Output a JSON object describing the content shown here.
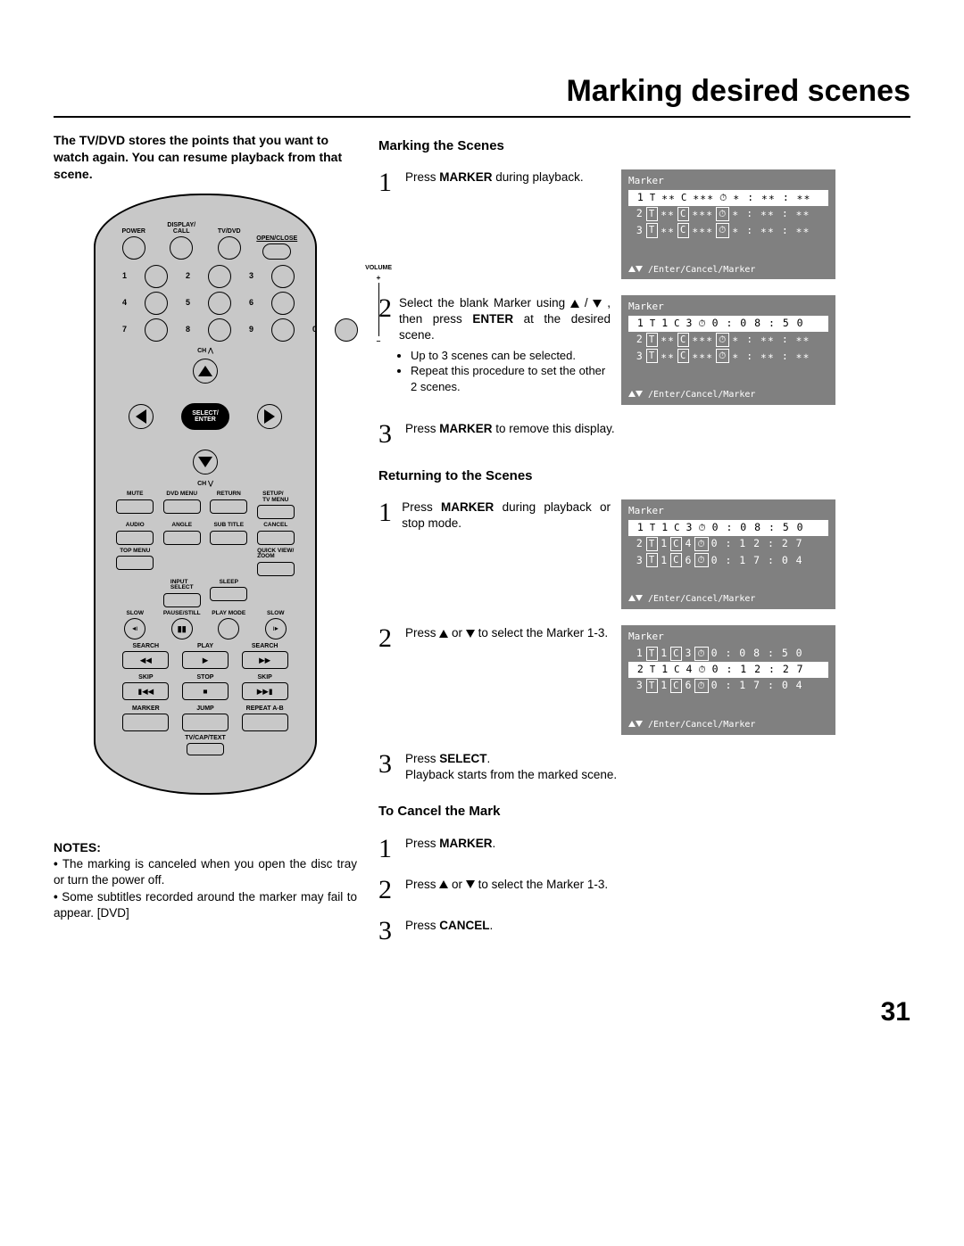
{
  "page": {
    "title": "Marking desired scenes",
    "number": "31"
  },
  "intro": "The TV/DVD stores the points that you want to watch again. You can resume playback from that scene.",
  "remote": {
    "row1": [
      "POWER",
      "DISPLAY/\nCALL",
      "TV/DVD",
      "OPEN/CLOSE"
    ],
    "vol": "VOLUME",
    "ch_up": "CH ⋀",
    "ch_dn": "CH ⋁",
    "center": "SELECT/\nENTER",
    "grid_a": [
      "MUTE",
      "DVD MENU",
      "RETURN",
      "SETUP/\nTV MENU"
    ],
    "grid_b": [
      "AUDIO",
      "ANGLE",
      "SUB TITLE",
      "CANCEL"
    ],
    "grid_c": [
      "TOP MENU",
      "",
      "",
      "QUICK VIEW/\nZOOM"
    ],
    "grid_d": [
      "",
      "INPUT\nSELECT",
      "SLEEP",
      ""
    ],
    "grid_e": [
      "SLOW",
      "PAUSE/STILL",
      "PLAY MODE",
      "SLOW"
    ],
    "search": "SEARCH",
    "play": "PLAY",
    "skip": "SKIP",
    "stop": "STOP",
    "marker": "MARKER",
    "jump": "JUMP",
    "repeat": "REPEAT A-B",
    "tvcap": "TV/CAP/TEXT"
  },
  "marking": {
    "header": "Marking the Scenes",
    "step1": {
      "a": "Press ",
      "b": "MARKER",
      "c": " during playback."
    },
    "step2": {
      "a": "Select the blank Marker using      /      , then press ",
      "b": "ENTER",
      "c": " at the desired scene."
    },
    "step2_bullets": [
      "Up to 3 scenes can be selected.",
      "Repeat this procedure to set the other 2 scenes."
    ],
    "step3": {
      "a": "Press ",
      "b": "MARKER",
      "c": " to remove this display."
    }
  },
  "returning": {
    "header": "Returning to the Scenes",
    "step1": {
      "a": "Press ",
      "b": "MARKER",
      "c": " during playback or stop mode."
    },
    "step2": {
      "a": "Press ",
      "b": "or",
      "c": " to select the Marker 1-3."
    },
    "step3": {
      "a": "Press ",
      "b": "SELECT",
      "c": ".",
      "d": "Playback starts from the marked scene."
    }
  },
  "cancel": {
    "header": "To Cancel the Mark",
    "step1": {
      "a": "Press ",
      "b": "MARKER",
      "c": "."
    },
    "step2": {
      "a": "Press ",
      "b": "or",
      "c": " to select the Marker 1-3."
    },
    "step3": {
      "a": "Press ",
      "b": "CANCEL",
      "c": "."
    }
  },
  "notes": {
    "header": "NOTES:",
    "items": [
      "The marking is canceled when you open the disc tray or turn the power off.",
      "Some subtitles recorded around the marker may fail to appear. [DVD]"
    ]
  },
  "screens": {
    "label": "Marker",
    "nav": "/Enter/Cancel/Marker",
    "s1": [
      {
        "n": "1",
        "t": "∗∗",
        "c": "∗∗∗",
        "time": "∗ : ∗∗ : ∗∗",
        "hl": true
      },
      {
        "n": "2",
        "t": "∗∗",
        "c": "∗∗∗",
        "time": "∗ : ∗∗ : ∗∗"
      },
      {
        "n": "3",
        "t": "∗∗",
        "c": "∗∗∗",
        "time": "∗ : ∗∗ : ∗∗"
      }
    ],
    "s2": [
      {
        "n": "1",
        "t": "1",
        "c": "3",
        "time": "0 : 0 8 : 5 0",
        "hl": true
      },
      {
        "n": "2",
        "t": "∗∗",
        "c": "∗∗∗",
        "time": "∗ : ∗∗ : ∗∗"
      },
      {
        "n": "3",
        "t": "∗∗",
        "c": "∗∗∗",
        "time": "∗ : ∗∗ : ∗∗"
      }
    ],
    "s3": [
      {
        "n": "1",
        "t": "1",
        "c": "3",
        "time": "0 : 0 8 : 5 0",
        "hl": true
      },
      {
        "n": "2",
        "t": "1",
        "c": "4",
        "time": "0 : 1 2 : 2 7"
      },
      {
        "n": "3",
        "t": "1",
        "c": "6",
        "time": "0 : 1 7 : 0 4"
      }
    ],
    "s4": [
      {
        "n": "1",
        "t": "1",
        "c": "3",
        "time": "0 : 0 8 : 5 0"
      },
      {
        "n": "2",
        "t": "1",
        "c": "4",
        "time": "0 : 1 2 : 2 7",
        "hl": true
      },
      {
        "n": "3",
        "t": "1",
        "c": "6",
        "time": "0 : 1 7 : 0 4"
      }
    ]
  }
}
